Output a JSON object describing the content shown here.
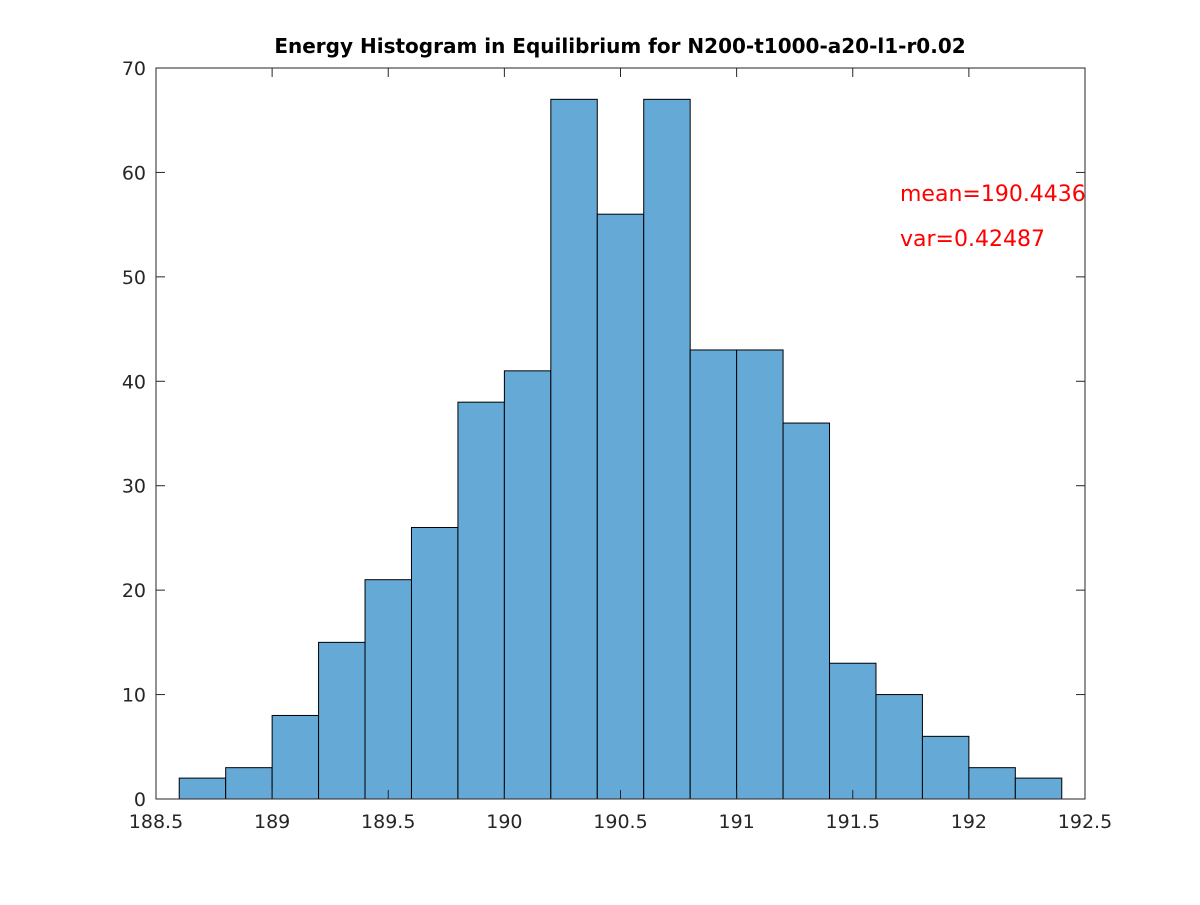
{
  "chart_data": {
    "type": "bar",
    "title": "Energy Histogram in Equilibrium for N200-t1000-a20-l1-r0.02",
    "xlabel": "",
    "ylabel": "",
    "xlim": [
      188.6,
      192.5
    ],
    "ylim": [
      0,
      70
    ],
    "x_ticks": [
      "188.5",
      "189",
      "189.5",
      "190",
      "190.5",
      "191",
      "191.5",
      "192",
      "192.5"
    ],
    "y_ticks": [
      "0",
      "10",
      "20",
      "30",
      "40",
      "50",
      "60",
      "70"
    ],
    "bin_edges": [
      188.6,
      188.8,
      189.0,
      189.2,
      189.4,
      189.6,
      189.8,
      190.0,
      190.2,
      190.4,
      190.6,
      190.8,
      191.0,
      191.2,
      191.4,
      191.6,
      191.8,
      192.0,
      192.2,
      192.4
    ],
    "values": [
      2,
      3,
      8,
      15,
      21,
      26,
      38,
      41,
      67,
      56,
      67,
      43,
      43,
      36,
      13,
      10,
      6,
      3,
      2
    ],
    "bar_color": "#65a9d7",
    "edge_color": "#000000",
    "grid": false,
    "annotations": [
      {
        "text": "mean=190.4436",
        "color": "#ff0000"
      },
      {
        "text": "var=0.42487",
        "color": "#ff0000"
      }
    ]
  }
}
